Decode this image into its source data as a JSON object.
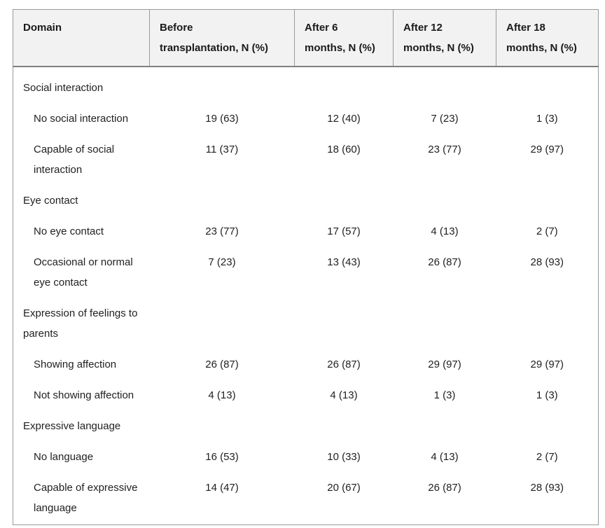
{
  "table": {
    "columns": [
      "Domain",
      "Before\ntransplantation, N (%)",
      "After 6\nmonths, N (%)",
      "After 12\nmonths, N (%)",
      "After 18\nmonths, N (%)"
    ],
    "sections": [
      {
        "label": "Social interaction",
        "rows": [
          {
            "label": "No social interaction",
            "values": [
              "19 (63)",
              "12 (40)",
              "7 (23)",
              "1 (3)"
            ]
          },
          {
            "label": "Capable of social\ninteraction",
            "values": [
              "11 (37)",
              "18 (60)",
              "23 (77)",
              "29 (97)"
            ]
          }
        ]
      },
      {
        "label": "Eye contact",
        "rows": [
          {
            "label": "No eye contact",
            "values": [
              "23 (77)",
              "17 (57)",
              "4 (13)",
              "2 (7)"
            ]
          },
          {
            "label": "Occasional or normal\neye contact",
            "values": [
              "7 (23)",
              "13 (43)",
              "26 (87)",
              "28 (93)"
            ]
          }
        ]
      },
      {
        "label": "Expression of feelings to\nparents",
        "rows": [
          {
            "label": "Showing affection",
            "values": [
              "26 (87)",
              "26 (87)",
              "29 (97)",
              "29 (97)"
            ]
          },
          {
            "label": "Not showing affection",
            "values": [
              "4 (13)",
              "4 (13)",
              "1 (3)",
              "1 (3)"
            ]
          }
        ]
      },
      {
        "label": "Expressive language",
        "rows": [
          {
            "label": "No language",
            "values": [
              "16 (53)",
              "10 (33)",
              "4 (13)",
              "2 (7)"
            ]
          },
          {
            "label": "Capable of expressive\nlanguage",
            "values": [
              "14 (47)",
              "20 (67)",
              "26 (87)",
              "28 (93)"
            ]
          }
        ]
      }
    ],
    "colors": {
      "header_background": "#f2f2f2",
      "border": "#9a9a9a",
      "header_bottom_border": "#7f7f7f",
      "text": "#1f1f1f",
      "background": "#ffffff"
    }
  }
}
